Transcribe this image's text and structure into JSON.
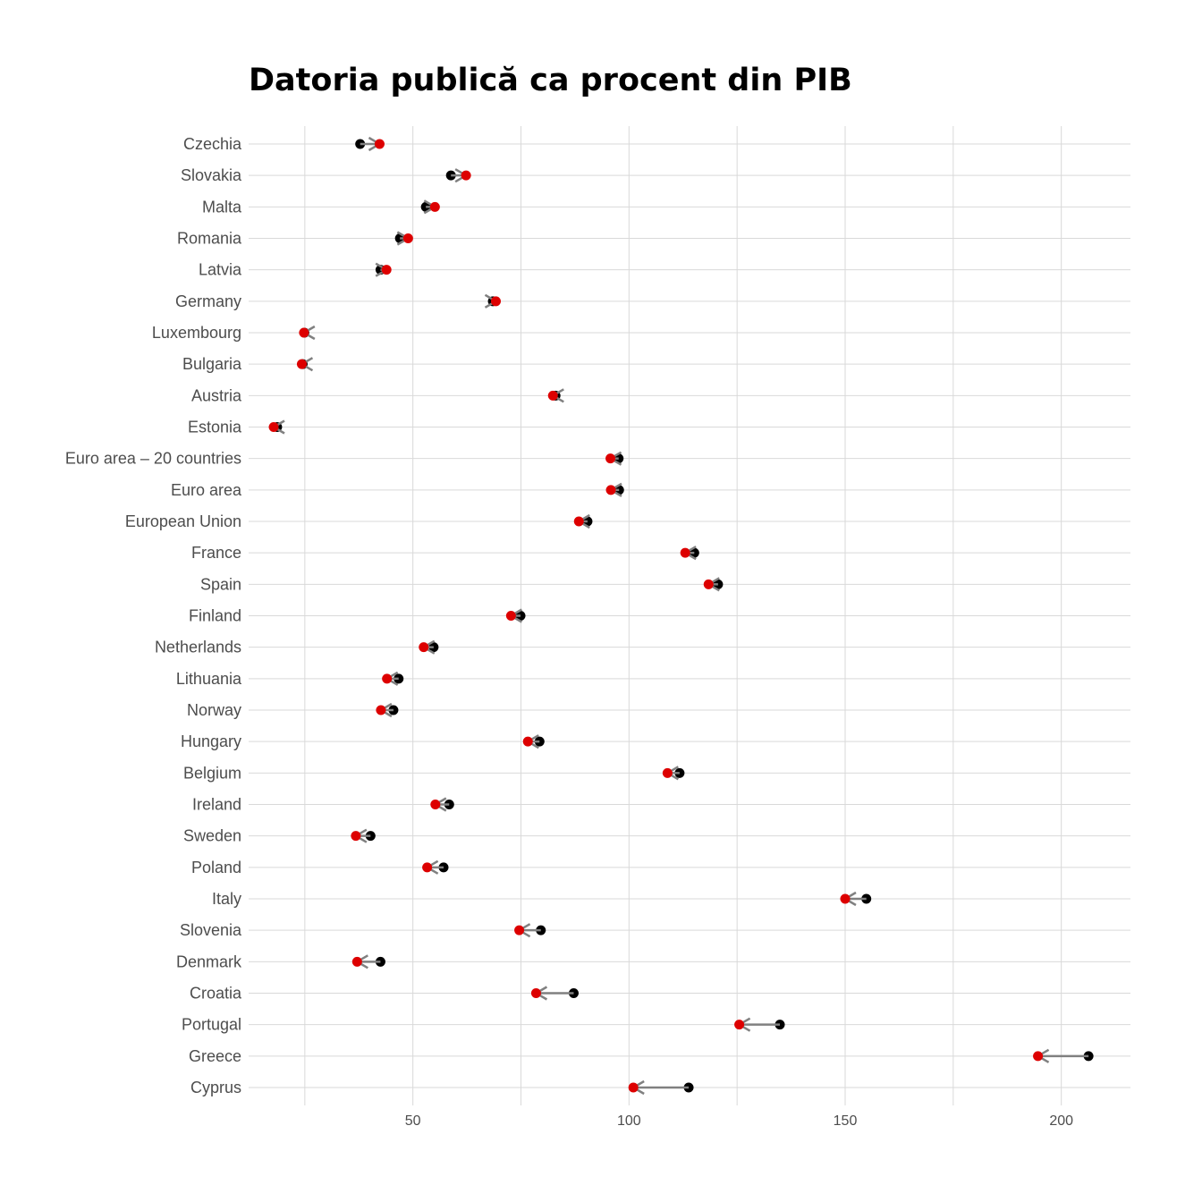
{
  "chart_data": {
    "type": "dumbbell",
    "title": "Datoria publică ca procent din PIB",
    "xlabel": "",
    "ylabel": "",
    "xlim": [
      12,
      216
    ],
    "xticks": [
      50,
      100,
      150,
      200
    ],
    "grid": true,
    "colors": {
      "start": "#000000",
      "end": "#dd0000",
      "arrow": "#808080",
      "grid": "#d9d9d9"
    },
    "series": [
      {
        "name": "start",
        "color": "#000000"
      },
      {
        "name": "end",
        "color": "#dd0000"
      }
    ],
    "rows": [
      {
        "label": "Czechia",
        "start": 37.8,
        "end": 42.3
      },
      {
        "label": "Slovakia",
        "start": 58.8,
        "end": 62.3
      },
      {
        "label": "Malta",
        "start": 53.0,
        "end": 55.1
      },
      {
        "label": "Romania",
        "start": 47.0,
        "end": 48.9
      },
      {
        "label": "Latvia",
        "start": 42.5,
        "end": 43.9
      },
      {
        "label": "Germany",
        "start": 68.5,
        "end": 69.2
      },
      {
        "label": "Luxembourg",
        "start": 24.9,
        "end": 24.8
      },
      {
        "label": "Bulgaria",
        "start": 24.5,
        "end": 24.3
      },
      {
        "label": "Austria",
        "start": 83.0,
        "end": 82.4
      },
      {
        "label": "Estonia",
        "start": 18.6,
        "end": 17.8
      },
      {
        "label": "Euro area – 20 countries",
        "start": 97.6,
        "end": 95.7
      },
      {
        "label": "Euro area",
        "start": 97.7,
        "end": 95.8
      },
      {
        "label": "European Union",
        "start": 90.4,
        "end": 88.4
      },
      {
        "label": "France",
        "start": 115.1,
        "end": 113.0
      },
      {
        "label": "Spain",
        "start": 120.6,
        "end": 118.4
      },
      {
        "label": "Finland",
        "start": 74.9,
        "end": 72.7
      },
      {
        "label": "Netherlands",
        "start": 54.8,
        "end": 52.5
      },
      {
        "label": "Lithuania",
        "start": 46.7,
        "end": 44.0
      },
      {
        "label": "Norway",
        "start": 45.5,
        "end": 42.6
      },
      {
        "label": "Hungary",
        "start": 79.3,
        "end": 76.6
      },
      {
        "label": "Belgium",
        "start": 111.7,
        "end": 108.9
      },
      {
        "label": "Ireland",
        "start": 58.4,
        "end": 55.2
      },
      {
        "label": "Sweden",
        "start": 40.2,
        "end": 36.8
      },
      {
        "label": "Poland",
        "start": 57.1,
        "end": 53.3
      },
      {
        "label": "Italy",
        "start": 154.9,
        "end": 150.0
      },
      {
        "label": "Slovenia",
        "start": 79.6,
        "end": 74.6
      },
      {
        "label": "Denmark",
        "start": 42.5,
        "end": 37.1
      },
      {
        "label": "Croatia",
        "start": 87.2,
        "end": 78.5
      },
      {
        "label": "Portugal",
        "start": 134.9,
        "end": 125.5
      },
      {
        "label": "Greece",
        "start": 206.3,
        "end": 194.6
      },
      {
        "label": "Cyprus",
        "start": 113.8,
        "end": 101.0
      }
    ]
  }
}
